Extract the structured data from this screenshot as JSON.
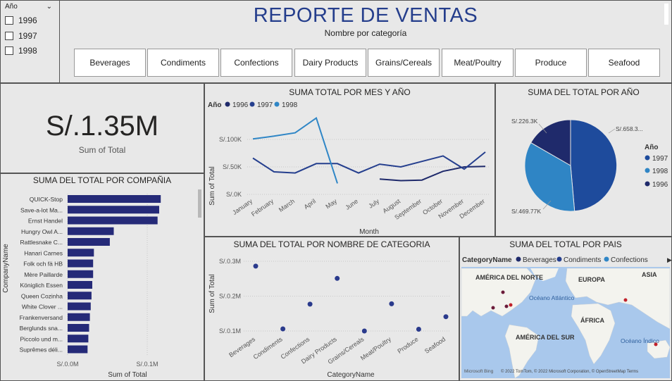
{
  "slicer": {
    "title": "Año",
    "options": [
      "1996",
      "1997",
      "1998"
    ]
  },
  "header": {
    "title": "REPORTE DE VENTAS",
    "subtitle": "Nombre por categoría",
    "categories": [
      "Beverages",
      "Condiments",
      "Confections",
      "Dairy Products",
      "Grains/Cereals",
      "Meat/Poultry",
      "Produce",
      "Seafood"
    ]
  },
  "kpi": {
    "value": "S/.1.35M",
    "label": "Sum of Total"
  },
  "colors": {
    "s1996": "#1f2a6b",
    "s1997": "#253f8e",
    "s1998": "#2f86c6",
    "bar": "#252a78",
    "pie1997": "#1e4b9c",
    "pie1998": "#2f85c5",
    "pie1996": "#1f2a6b"
  },
  "charts": {
    "month": {
      "title": "SUMA TOTAL POR MES Y AÑO",
      "legend_title": "Año",
      "xlabel": "Month",
      "ylabel": "Sum of Total",
      "yticks": [
        "S/.0K",
        "S/.50K",
        "S/.100K"
      ]
    },
    "pie": {
      "title": "SUMA DEL TOTAL POR AÑO",
      "legend_title": "Año"
    },
    "company": {
      "title": "SUMA DEL TOTAL POR COMPAÑIA",
      "xlabel": "Sum of Total",
      "ylabel": "CompanyName",
      "xticks": [
        "S/.0.0M",
        "S/.0.1M"
      ]
    },
    "category": {
      "title": "SUMA DEL TOTAL POR NOMBRE DE CATEGORIA",
      "xlabel": "CategoryName",
      "ylabel": "Sum of Total",
      "yticks": [
        "S/.0.1M",
        "S/.0.2M",
        "S/.0.3M"
      ]
    },
    "map": {
      "title": "SUMA DEL TOTAL POR PAIS",
      "legend_label": "CategoryName",
      "legend_items": [
        "Beverages",
        "Condiments",
        "Confections"
      ],
      "regions": [
        "AMÉRICA DEL NORTE",
        "EUROPA",
        "ASIA",
        "Océano Atlántico",
        "ÁFRICA",
        "AMÉRICA DEL SUR",
        "Océano Índico"
      ],
      "credits": "© 2022 TomTom, © 2022 Microsoft Corporation, © OpenStreetMap  Terms",
      "brand": "Microsoft Bing"
    }
  },
  "chart_data": [
    {
      "type": "line",
      "title": "SUMA TOTAL POR MES Y AÑO",
      "xlabel": "Month",
      "ylabel": "Sum of Total",
      "categories": [
        "January",
        "February",
        "March",
        "April",
        "May",
        "June",
        "July",
        "August",
        "September",
        "October",
        "November",
        "December"
      ],
      "ylim": [
        0,
        150000
      ],
      "series": [
        {
          "name": "1996",
          "values": [
            null,
            null,
            null,
            null,
            null,
            null,
            28000,
            25000,
            26000,
            42000,
            50000,
            51000
          ]
        },
        {
          "name": "1997",
          "values": [
            66000,
            41000,
            39000,
            56000,
            56000,
            39000,
            55000,
            50000,
            60000,
            70000,
            46000,
            77000
          ]
        },
        {
          "name": "1998",
          "values": [
            101000,
            106000,
            112000,
            139000,
            20000,
            null,
            null,
            null,
            null,
            null,
            null,
            null
          ]
        }
      ]
    },
    {
      "type": "pie",
      "title": "SUMA DEL TOTAL POR AÑO",
      "labels": [
        "1997",
        "1998",
        "1996"
      ],
      "values": [
        658300,
        469770,
        226300
      ],
      "data_labels": [
        "S/.658.3...",
        "S/.469.77K",
        "S/.226.3K"
      ],
      "legend": "right"
    },
    {
      "type": "bar",
      "orientation": "horizontal",
      "title": "SUMA DEL TOTAL POR COMPAÑIA",
      "xlabel": "Sum of Total",
      "ylabel": "CompanyName",
      "xlim": [
        0,
        0.15
      ],
      "categories": [
        "QUICK-Stop",
        "Save-a-lot Ma...",
        "Ernst Handel",
        "Hungry Owl A...",
        "Rattlesnake C...",
        "Hanari Carnes",
        "Folk och fä HB",
        "Mère Paillarde",
        "Königlich Essen",
        "Queen Cozinha",
        "White Clover ...",
        "Frankenversand",
        "Berglunds sna...",
        "Piccolo und m...",
        "Suprêmes déli..."
      ],
      "values": [
        0.117,
        0.115,
        0.113,
        0.058,
        0.053,
        0.033,
        0.032,
        0.032,
        0.031,
        0.03,
        0.029,
        0.028,
        0.027,
        0.026,
        0.025
      ]
    },
    {
      "type": "scatter",
      "title": "SUMA DEL TOTAL POR NOMBRE DE CATEGORIA",
      "xlabel": "CategoryName",
      "ylabel": "Sum of Total",
      "categories": [
        "Beverages",
        "Condiments",
        "Confections",
        "Dairy Products",
        "Grains/Cereals",
        "Meat/Poultry",
        "Produce",
        "Seafood"
      ],
      "values": [
        0.286,
        0.106,
        0.177,
        0.251,
        0.1,
        0.178,
        0.105,
        0.141
      ],
      "ylim": [
        0.1,
        0.3
      ]
    }
  ]
}
